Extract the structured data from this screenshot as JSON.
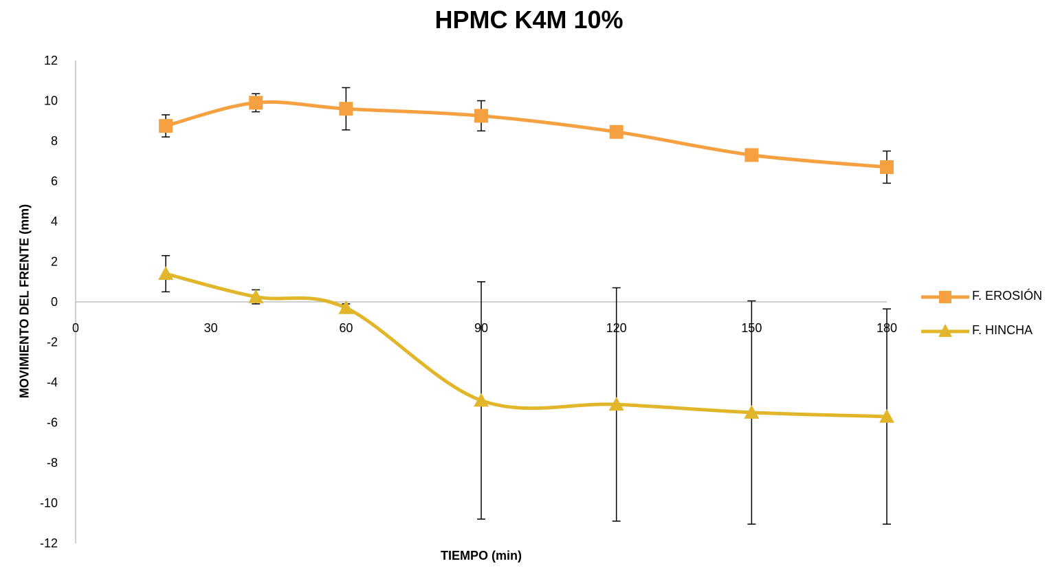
{
  "chart_data": {
    "type": "line",
    "title": "HPMC K4M 10%",
    "xlabel": "TIEMPO (min)",
    "ylabel": "MOVIMIENTO DEL FRENTE (mm)",
    "x_ticks": [
      0,
      30,
      60,
      90,
      120,
      150,
      180
    ],
    "y_ticks": [
      12,
      10,
      8,
      6,
      4,
      2,
      0,
      -2,
      -4,
      -6,
      -8,
      -10,
      -12
    ],
    "xlim": [
      0,
      180
    ],
    "ylim": [
      -12,
      12
    ],
    "grid": false,
    "legend_position": "right",
    "series": [
      {
        "name": "F. EROSIÓN",
        "marker": "square",
        "color": "#F5A142",
        "x": [
          20,
          40,
          60,
          90,
          120,
          150,
          180
        ],
        "y": [
          8.75,
          9.9,
          9.6,
          9.25,
          8.45,
          7.3,
          6.7
        ],
        "err": [
          0.55,
          0.45,
          1.05,
          0.75,
          0.3,
          0.1,
          0.8
        ]
      },
      {
        "name": "F. HINCHA",
        "marker": "triangle",
        "color": "#E2B62A",
        "x": [
          20,
          40,
          60,
          90,
          120,
          150,
          180
        ],
        "y": [
          1.4,
          0.25,
          -0.3,
          -4.9,
          -5.1,
          -5.5,
          -5.7
        ],
        "err": [
          0.9,
          0.35,
          0.2,
          5.9,
          5.8,
          5.55,
          5.35
        ]
      }
    ]
  }
}
